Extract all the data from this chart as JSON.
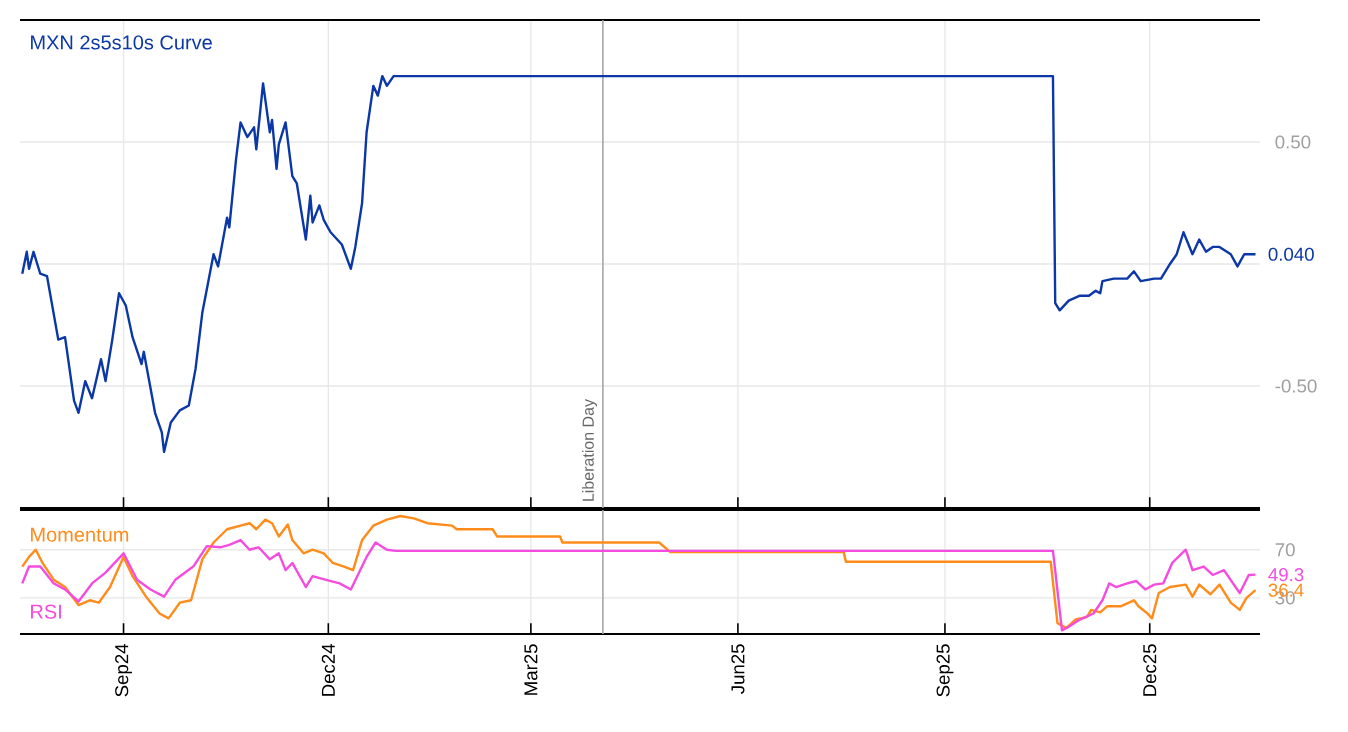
{
  "chart_data": [
    {
      "type": "line",
      "title": "MXN 2s5s10s Curve",
      "series": [
        {
          "color": "#0b38a6",
          "x": [
            "2024-07-18",
            "2024-07-20",
            "2024-07-21",
            "2024-07-23",
            "2024-07-26",
            "2024-07-29",
            "2024-08-03",
            "2024-08-06",
            "2024-08-10",
            "2024-08-12",
            "2024-08-15",
            "2024-08-18",
            "2024-08-22",
            "2024-08-24",
            "2024-08-27",
            "2024-08-30",
            "2024-09-02",
            "2024-09-05",
            "2024-09-09",
            "2024-09-10",
            "2024-09-15",
            "2024-09-18",
            "2024-09-19",
            "2024-09-22",
            "2024-09-26",
            "2024-09-30",
            "2024-10-03",
            "2024-10-06",
            "2024-10-11",
            "2024-10-13",
            "2024-10-17",
            "2024-10-18",
            "2024-10-21",
            "2024-10-23",
            "2024-10-26",
            "2024-10-29",
            "2024-10-30",
            "2024-11-02",
            "2024-11-05",
            "2024-11-06",
            "2024-11-08",
            "2024-11-09",
            "2024-11-12",
            "2024-11-15",
            "2024-11-17",
            "2024-11-21",
            "2024-11-23",
            "2024-11-24",
            "2024-11-27",
            "2024-11-29",
            "2024-12-02",
            "2024-12-07",
            "2024-12-11",
            "2024-12-13",
            "2024-12-16",
            "2024-12-18",
            "2024-12-21",
            "2024-12-23",
            "2024-12-25",
            "2024-12-27",
            "2024-12-30",
            "2025-10-19",
            "2025-10-20",
            "2025-10-22",
            "2025-10-26",
            "2025-10-31",
            "2025-11-04",
            "2025-11-07",
            "2025-11-09",
            "2025-11-10",
            "2025-11-15",
            "2025-11-21",
            "2025-11-24",
            "2025-11-27",
            "2025-12-03",
            "2025-12-06",
            "2025-12-10",
            "2025-12-13",
            "2025-12-16",
            "2025-12-20",
            "2025-12-23",
            "2025-12-26",
            "2025-12-29",
            "2026-01-01",
            "2026-01-06",
            "2026-01-09",
            "2026-01-12",
            "2026-01-17"
          ],
          "values": [
            -0.04,
            0.05,
            -0.02,
            0.05,
            -0.04,
            -0.05,
            -0.31,
            -0.3,
            -0.56,
            -0.61,
            -0.48,
            -0.55,
            -0.39,
            -0.48,
            -0.31,
            -0.12,
            -0.17,
            -0.3,
            -0.41,
            -0.36,
            -0.61,
            -0.69,
            -0.77,
            -0.65,
            -0.6,
            -0.58,
            -0.43,
            -0.2,
            0.04,
            -0.01,
            0.19,
            0.15,
            0.43,
            0.58,
            0.52,
            0.56,
            0.47,
            0.74,
            0.54,
            0.59,
            0.39,
            0.49,
            0.58,
            0.36,
            0.33,
            0.1,
            0.28,
            0.17,
            0.24,
            0.18,
            0.13,
            0.08,
            -0.02,
            0.07,
            0.25,
            0.54,
            0.73,
            0.69,
            0.77,
            0.73,
            0.77,
            0.77,
            -0.16,
            -0.19,
            -0.15,
            -0.13,
            -0.13,
            -0.11,
            -0.12,
            -0.07,
            -0.06,
            -0.06,
            -0.03,
            -0.07,
            -0.06,
            -0.06,
            0.0,
            0.04,
            0.13,
            0.04,
            0.1,
            0.05,
            0.07,
            0.07,
            0.04,
            -0.01,
            0.04,
            0.04
          ]
        }
      ],
      "xlim": [
        "2024-07-17",
        "2026-01-19"
      ],
      "xticks": [
        {
          "value": "2024-09-01",
          "label": null
        },
        {
          "value": "2024-12-01",
          "label": null
        },
        {
          "value": "2025-03-01",
          "label": null
        },
        {
          "value": "2025-06-01",
          "label": null
        },
        {
          "value": "2025-09-01",
          "label": null
        },
        {
          "value": "2025-12-01",
          "label": null
        }
      ],
      "ylim": [
        -1,
        1
      ],
      "yticks": [
        {
          "value": -0.5,
          "label": "-0.50"
        },
        {
          "value": 0,
          "label": null
        },
        {
          "value": 0.5,
          "label": "0.50"
        }
      ],
      "tick_labels": "y",
      "grid": true,
      "ref_lines": [
        {
          "axis": "x",
          "value": "2025-04-02",
          "label": "Liberation Day",
          "color": "#a6a6a6"
        }
      ],
      "annotations": [
        {
          "text": "0.040",
          "x": "2026-01-17",
          "y": 0.04
        }
      ]
    },
    {
      "type": "line",
      "series": [
        {
          "name": "Momentum",
          "color": "#ff8c1a",
          "x": [
            "2024-07-18",
            "2024-07-21",
            "2024-07-24",
            "2024-07-27",
            "2024-08-01",
            "2024-08-06",
            "2024-08-12",
            "2024-08-17",
            "2024-08-21",
            "2024-08-26",
            "2024-09-01",
            "2024-09-05",
            "2024-09-11",
            "2024-09-17",
            "2024-09-21",
            "2024-09-26",
            "2024-10-01",
            "2024-10-06",
            "2024-10-11",
            "2024-10-17",
            "2024-10-23",
            "2024-10-27",
            "2024-10-30",
            "2024-11-03",
            "2024-11-06",
            "2024-11-09",
            "2024-11-13",
            "2024-11-15",
            "2024-11-20",
            "2024-11-24",
            "2024-11-29",
            "2024-12-03",
            "2024-12-08",
            "2024-12-12",
            "2024-12-16",
            "2024-12-21",
            "2024-12-27",
            "2025-01-02",
            "2025-01-08",
            "2025-01-14",
            "2025-01-25",
            "2025-01-27",
            "2025-02-12",
            "2025-02-14",
            "2025-03-14",
            "2025-03-15",
            "2025-04-27",
            "2025-05-02",
            "2025-07-18",
            "2025-07-19",
            "2025-10-18",
            "2025-10-21",
            "2025-10-25",
            "2025-10-29",
            "2025-11-03",
            "2025-11-05",
            "2025-11-09",
            "2025-11-12",
            "2025-11-18",
            "2025-11-24",
            "2025-11-26",
            "2025-11-30",
            "2025-12-02",
            "2025-12-05",
            "2025-12-10",
            "2025-12-17",
            "2025-12-20",
            "2025-12-23",
            "2025-12-28",
            "2026-01-01",
            "2026-01-06",
            "2026-01-10",
            "2026-01-13",
            "2026-01-17"
          ],
          "values": [
            56,
            64,
            70,
            59,
            45,
            39,
            24,
            28,
            26,
            39,
            64,
            48,
            31,
            17,
            13,
            26,
            28,
            62,
            76,
            87,
            90,
            92,
            87,
            95,
            92,
            81,
            91,
            78,
            67,
            70,
            67,
            59,
            56,
            53,
            78,
            90,
            95,
            98,
            96,
            92,
            90,
            87,
            87,
            81,
            81,
            76,
            76,
            68,
            68,
            60,
            60,
            9,
            5,
            12,
            14,
            20,
            18,
            23,
            23,
            28,
            23,
            17,
            13,
            34,
            39,
            41,
            31,
            41,
            33,
            41,
            26,
            20,
            30,
            36.4
          ]
        },
        {
          "name": "RSI",
          "color": "#f54ce0",
          "x": [
            "2024-07-18",
            "2024-07-21",
            "2024-07-26",
            "2024-08-01",
            "2024-08-06",
            "2024-08-12",
            "2024-08-18",
            "2024-08-24",
            "2024-09-01",
            "2024-09-07",
            "2024-09-13",
            "2024-09-19",
            "2024-09-24",
            "2024-10-02",
            "2024-10-08",
            "2024-10-14",
            "2024-10-18",
            "2024-10-23",
            "2024-10-27",
            "2024-10-31",
            "2024-11-05",
            "2024-11-09",
            "2024-11-12",
            "2024-11-15",
            "2024-11-21",
            "2024-11-24",
            "2024-11-30",
            "2024-12-06",
            "2024-12-11",
            "2024-12-18",
            "2024-12-22",
            "2024-12-27",
            "2024-12-31",
            "2025-10-19",
            "2025-10-23",
            "2025-10-26",
            "2025-10-31",
            "2025-11-06",
            "2025-11-10",
            "2025-11-13",
            "2025-11-16",
            "2025-11-21",
            "2025-11-25",
            "2025-11-29",
            "2025-12-03",
            "2025-12-07",
            "2025-12-11",
            "2025-12-17",
            "2025-12-20",
            "2025-12-25",
            "2025-12-29",
            "2026-01-03",
            "2026-01-07",
            "2026-01-10",
            "2026-01-14",
            "2026-01-17"
          ],
          "values": [
            42,
            56,
            56,
            42,
            37,
            27,
            42,
            51,
            67,
            45,
            37,
            31,
            45,
            56,
            73,
            72,
            74,
            78,
            70,
            72,
            62,
            67,
            53,
            59,
            39,
            48,
            45,
            42,
            37,
            64,
            76,
            70,
            69,
            69,
            3,
            6,
            12,
            17,
            28,
            42,
            39,
            42,
            44,
            37,
            41,
            42,
            59,
            70,
            53,
            56,
            49,
            53,
            42,
            34,
            49,
            49.3
          ]
        }
      ],
      "xlim": [
        "2024-07-17",
        "2026-01-19"
      ],
      "xticks": [
        {
          "value": "2024-09-01",
          "label": "Sep24"
        },
        {
          "value": "2024-12-01",
          "label": "Dec24"
        },
        {
          "value": "2025-03-01",
          "label": "Mar25"
        },
        {
          "value": "2025-06-01",
          "label": "Jun25"
        },
        {
          "value": "2025-09-01",
          "label": "Sep25"
        },
        {
          "value": "2025-12-01",
          "label": "Dec25"
        }
      ],
      "ylim": [
        0,
        103
      ],
      "yticks": [
        30,
        70
      ],
      "grid": true,
      "ref_lines": [
        {
          "axis": "x",
          "value": "2025-04-02",
          "color": "#a6a6a6"
        }
      ],
      "annotations": [
        {
          "text": "36.4",
          "x": "2026-01-17",
          "y": 36.4
        },
        {
          "text": "49.3",
          "x": "2026-01-17",
          "y": 49.3
        }
      ]
    }
  ]
}
